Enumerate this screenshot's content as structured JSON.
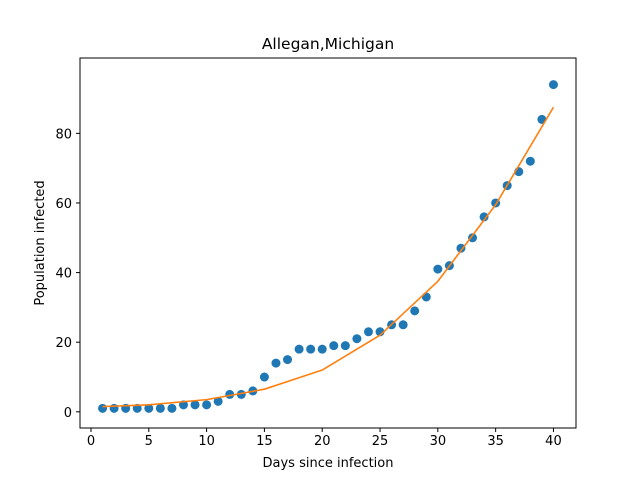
{
  "chart_data": {
    "type": "scatter",
    "title": "Allegan,Michigan",
    "xlabel": "Days since infection",
    "ylabel": "Population infected",
    "xlim": [
      -0.95,
      41.95
    ],
    "ylim": [
      -4.65,
      101.65
    ],
    "xticks": [
      0,
      5,
      10,
      15,
      20,
      25,
      30,
      35,
      40
    ],
    "yticks": [
      0,
      20,
      40,
      60,
      80
    ],
    "grid": false,
    "legend": "none",
    "series": [
      {
        "kind": "scatter",
        "color": "#1f77b4",
        "x": [
          1,
          2,
          3,
          4,
          5,
          6,
          7,
          8,
          9,
          10,
          11,
          12,
          13,
          14,
          15,
          16,
          17,
          18,
          19,
          20,
          21,
          22,
          23,
          24,
          25,
          26,
          27,
          28,
          29,
          30,
          31,
          32,
          33,
          34,
          35,
          36,
          37,
          38,
          39,
          40
        ],
        "y": [
          1,
          1,
          1,
          1,
          1,
          1,
          1,
          2,
          2,
          2,
          3,
          5,
          5,
          6,
          10,
          14,
          15,
          18,
          18,
          18,
          19,
          19,
          21,
          23,
          23,
          25,
          25,
          29,
          33,
          41,
          42,
          47,
          50,
          56,
          60,
          65,
          69,
          72,
          84,
          94
        ]
      },
      {
        "kind": "line",
        "color": "#ff7f0e",
        "x": [
          1,
          5,
          10,
          15,
          20,
          25,
          30,
          35,
          40
        ],
        "y": [
          1.5,
          2.0,
          3.5,
          6.5,
          12.0,
          22.0,
          37.5,
          59.5,
          87.5
        ]
      }
    ]
  }
}
